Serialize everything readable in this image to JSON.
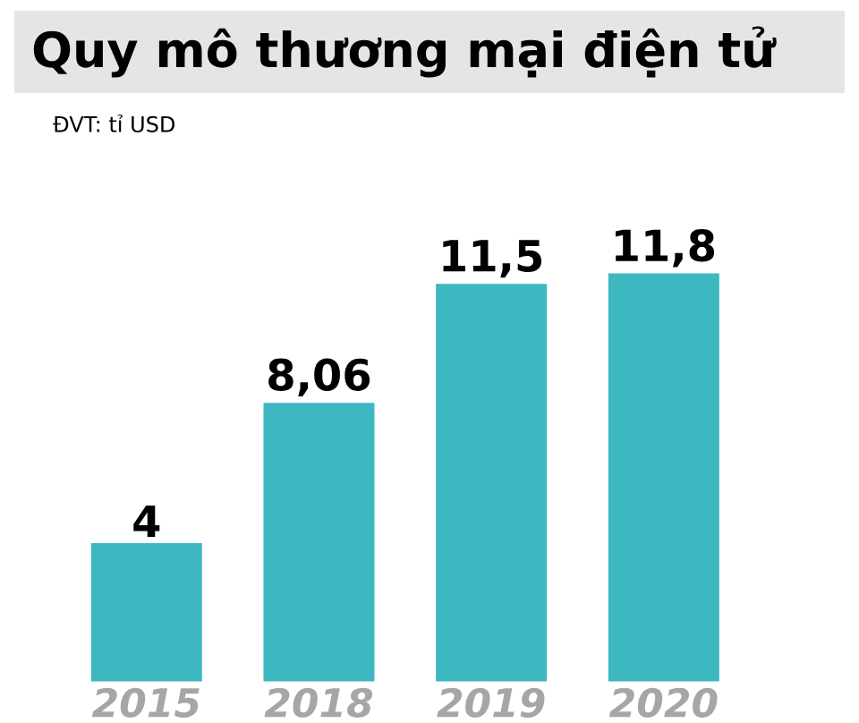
{
  "chart_data": {
    "type": "bar",
    "title": "Quy mô thương mại điện tử",
    "subtitle": "ĐVT: tỉ USD",
    "categories": [
      "2015",
      "2018",
      "2019",
      "2020"
    ],
    "values": [
      4,
      8.06,
      11.5,
      11.8
    ],
    "value_labels": [
      "4",
      "8,06",
      "11,5",
      "11,8"
    ],
    "color": "#3db8c1"
  }
}
